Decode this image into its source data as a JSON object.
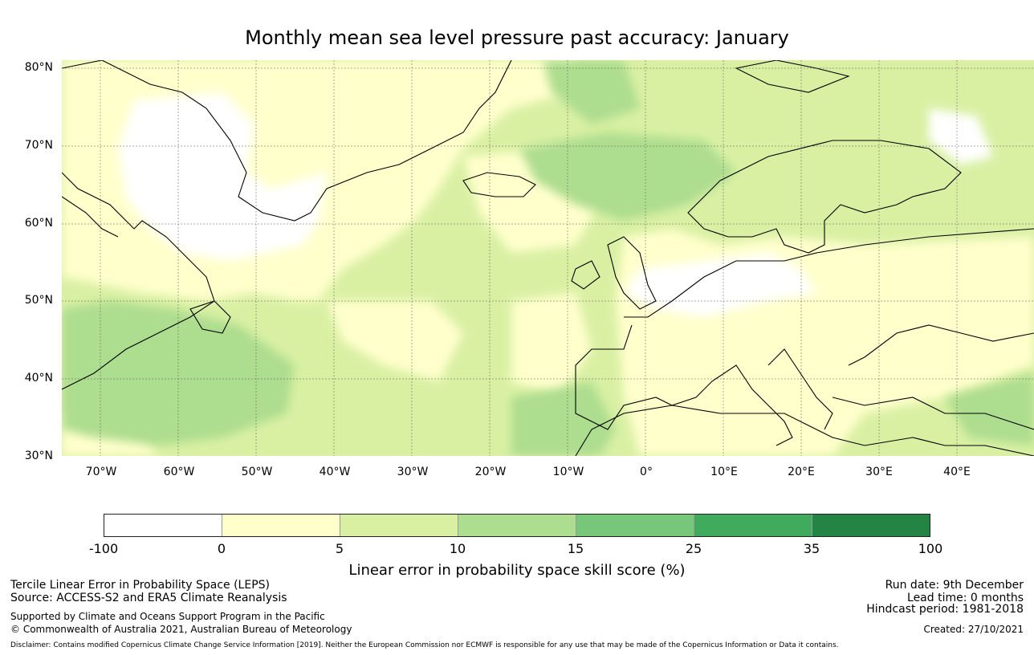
{
  "title": "Monthly mean sea level pressure past accuracy: January",
  "map": {
    "region": "North Atlantic and Europe",
    "lon_range": [
      -75,
      50
    ],
    "lat_range": [
      30,
      81
    ],
    "lat_labels": [
      "80°N",
      "70°N",
      "60°N",
      "50°N",
      "40°N",
      "30°N"
    ],
    "lon_labels": [
      "70°W",
      "60°W",
      "50°W",
      "40°W",
      "30°W",
      "20°W",
      "10°W",
      "0°",
      "10°E",
      "20°E",
      "30°E",
      "40°E"
    ],
    "land_line_color": "#000000",
    "grid_color": "#555555"
  },
  "colorbar": {
    "title": "Linear error in probability space skill score (%)",
    "labels": [
      "-100",
      "0",
      "5",
      "10",
      "15",
      "25",
      "35",
      "100"
    ],
    "colors": [
      "#ffffff",
      "#ffffcc",
      "#d9f0a3",
      "#addd8e",
      "#78c679",
      "#41ab5d",
      "#238443"
    ]
  },
  "info": {
    "leps_label": "Tercile Linear Error in Probability Space (LEPS)",
    "source": "Source: ACCESS-S2 and ERA5 Climate Reanalysis",
    "supported": "Supported by Climate and Oceans Support Program in the Pacific",
    "copyright": "© Commonwealth of Australia 2021, Australian Bureau of Meteorology",
    "run_date": "Run date: 9th December",
    "lead_time": "Lead time: 0 months",
    "hindcast": "Hindcast period: 1981-2018",
    "created": "Created: 27/10/2021",
    "disclaimer": "Disclaimer: Contains modified Copernicus Climate Change Service Information [2019]. Neither the European Commission nor ECMWF is responsible for any use that may be made of the Copernicus Information or Data it contains."
  }
}
